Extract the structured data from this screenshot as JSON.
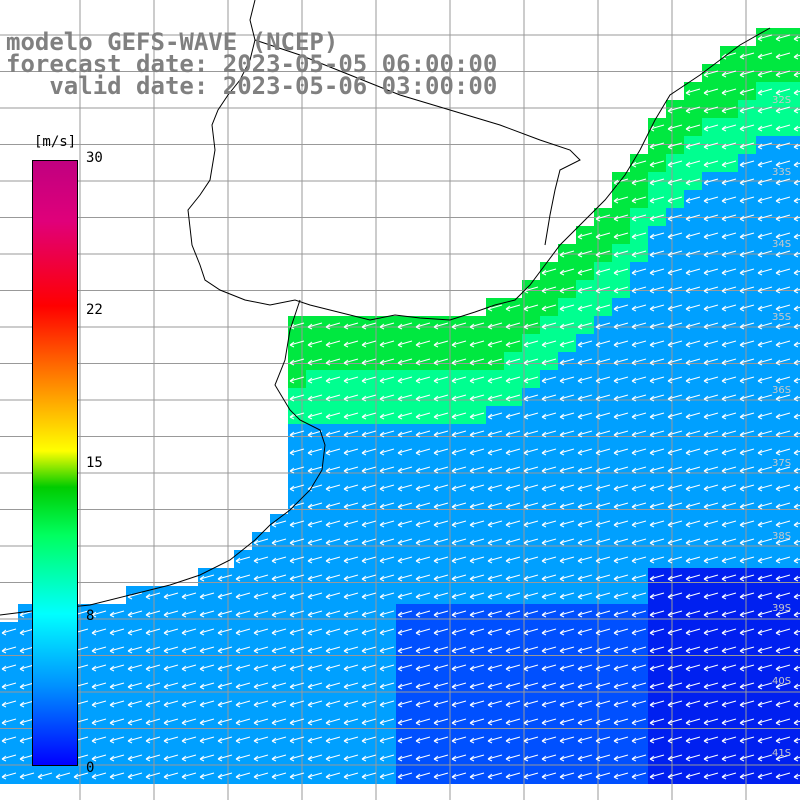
{
  "title": {
    "line1": "modelo GEFS-WAVE (NCEP)",
    "line2": "forecast date: 2023-05-05 06:00:00",
    "line3": "   valid date: 2023-05-06 03:00:00"
  },
  "colorbar": {
    "units": "[m/s]",
    "ticks": [
      {
        "label": "30",
        "value": 30
      },
      {
        "label": "22",
        "value": 22
      },
      {
        "label": "15",
        "value": 15
      },
      {
        "label": "8",
        "value": 8
      },
      {
        "label": "0",
        "value": 0
      }
    ],
    "colors": [
      "#0000ff",
      "#0090ff",
      "#00ffff",
      "#00ff60",
      "#00cc00",
      "#ffff00",
      "#ff8000",
      "#ff0000",
      "#e0007a",
      "#c00080"
    ]
  },
  "latitude_labels": [
    "32S",
    "33S",
    "34S",
    "35S",
    "36S",
    "37S",
    "38S",
    "39S",
    "40S",
    "41S"
  ]
}
